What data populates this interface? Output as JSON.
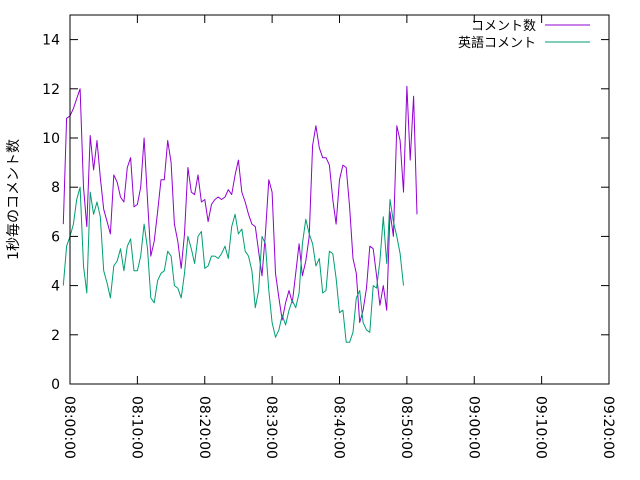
{
  "chart_data": {
    "type": "line",
    "title": "",
    "xlabel": "",
    "ylabel": "1秒毎のコメント数",
    "xlim": [
      "08:00:00",
      "09:20:00"
    ],
    "ylim": [
      0,
      15
    ],
    "x_ticks": [
      "08:00:00",
      "08:10:00",
      "08:20:00",
      "08:30:00",
      "08:40:00",
      "08:50:00",
      "09:00:00",
      "09:10:00",
      "09:20:00"
    ],
    "y_ticks": [
      0,
      2,
      4,
      6,
      8,
      10,
      12,
      14
    ],
    "grid": false,
    "legend_position": "top-right",
    "series": [
      {
        "name": "コメント数",
        "color": "#9400d3",
        "points": [
          [
            "07:59:00",
            6.5
          ],
          [
            "07:59:30",
            10.8
          ],
          [
            "08:00:00",
            10.9
          ],
          [
            "08:00:30",
            11.2
          ],
          [
            "08:01:00",
            11.6
          ],
          [
            "08:01:30",
            12.0
          ],
          [
            "08:02:00",
            8.0
          ],
          [
            "08:02:30",
            6.4
          ],
          [
            "08:03:00",
            10.1
          ],
          [
            "08:03:30",
            8.7
          ],
          [
            "08:04:00",
            9.9
          ],
          [
            "08:04:30",
            8.4
          ],
          [
            "08:05:00",
            7.1
          ],
          [
            "08:05:30",
            6.6
          ],
          [
            "08:06:00",
            6.1
          ],
          [
            "08:06:30",
            8.5
          ],
          [
            "08:07:00",
            8.2
          ],
          [
            "08:07:30",
            7.6
          ],
          [
            "08:08:00",
            7.4
          ],
          [
            "08:08:30",
            8.8
          ],
          [
            "08:09:00",
            9.2
          ],
          [
            "08:09:30",
            7.2
          ],
          [
            "08:10:00",
            7.3
          ],
          [
            "08:10:30",
            8.0
          ],
          [
            "08:11:00",
            10.0
          ],
          [
            "08:11:30",
            7.5
          ],
          [
            "08:12:00",
            5.2
          ],
          [
            "08:12:30",
            5.8
          ],
          [
            "08:13:00",
            7.0
          ],
          [
            "08:13:30",
            8.3
          ],
          [
            "08:14:00",
            8.3
          ],
          [
            "08:14:30",
            9.9
          ],
          [
            "08:15:00",
            9.0
          ],
          [
            "08:15:30",
            6.5
          ],
          [
            "08:16:00",
            5.8
          ],
          [
            "08:16:30",
            4.7
          ],
          [
            "08:17:00",
            6.1
          ],
          [
            "08:17:30",
            8.8
          ],
          [
            "08:18:00",
            7.8
          ],
          [
            "08:18:30",
            7.7
          ],
          [
            "08:19:00",
            8.5
          ],
          [
            "08:19:30",
            7.4
          ],
          [
            "08:20:00",
            7.5
          ],
          [
            "08:20:30",
            6.6
          ],
          [
            "08:21:00",
            7.3
          ],
          [
            "08:21:30",
            7.5
          ],
          [
            "08:22:00",
            7.6
          ],
          [
            "08:22:30",
            7.5
          ],
          [
            "08:23:00",
            7.6
          ],
          [
            "08:23:30",
            7.9
          ],
          [
            "08:24:00",
            7.7
          ],
          [
            "08:24:30",
            8.5
          ],
          [
            "08:25:00",
            9.1
          ],
          [
            "08:25:30",
            7.8
          ],
          [
            "08:26:00",
            7.4
          ],
          [
            "08:26:30",
            6.9
          ],
          [
            "08:27:00",
            6.5
          ],
          [
            "08:27:30",
            6.4
          ],
          [
            "08:28:00",
            5.4
          ],
          [
            "08:28:30",
            4.4
          ],
          [
            "08:29:00",
            6.1
          ],
          [
            "08:29:30",
            8.3
          ],
          [
            "08:30:00",
            7.8
          ],
          [
            "08:30:30",
            4.5
          ],
          [
            "08:31:00",
            3.5
          ],
          [
            "08:31:30",
            2.6
          ],
          [
            "08:32:00",
            3.3
          ],
          [
            "08:32:30",
            3.8
          ],
          [
            "08:33:00",
            3.3
          ],
          [
            "08:33:30",
            4.5
          ],
          [
            "08:34:00",
            5.7
          ],
          [
            "08:34:30",
            4.4
          ],
          [
            "08:35:00",
            5.0
          ],
          [
            "08:35:30",
            6.0
          ],
          [
            "08:36:00",
            9.7
          ],
          [
            "08:36:30",
            10.5
          ],
          [
            "08:37:00",
            9.6
          ],
          [
            "08:37:30",
            9.2
          ],
          [
            "08:38:00",
            9.2
          ],
          [
            "08:38:30",
            8.9
          ],
          [
            "08:39:00",
            7.5
          ],
          [
            "08:39:30",
            6.5
          ],
          [
            "08:40:00",
            8.3
          ],
          [
            "08:40:30",
            8.9
          ],
          [
            "08:41:00",
            8.8
          ],
          [
            "08:41:30",
            7.2
          ],
          [
            "08:42:00",
            5.1
          ],
          [
            "08:42:30",
            4.5
          ],
          [
            "08:43:00",
            2.5
          ],
          [
            "08:43:30",
            3.0
          ],
          [
            "08:44:00",
            3.9
          ],
          [
            "08:44:30",
            5.6
          ],
          [
            "08:45:00",
            5.5
          ],
          [
            "08:45:30",
            4.4
          ],
          [
            "08:46:00",
            3.2
          ],
          [
            "08:46:30",
            4.0
          ],
          [
            "08:47:00",
            3.0
          ],
          [
            "08:47:30",
            7.0
          ],
          [
            "08:48:00",
            6.0
          ],
          [
            "08:48:30",
            10.5
          ],
          [
            "08:49:00",
            9.9
          ],
          [
            "08:49:30",
            7.8
          ],
          [
            "08:50:00",
            12.1
          ],
          [
            "08:50:30",
            9.1
          ],
          [
            "08:51:00",
            11.7
          ],
          [
            "08:51:30",
            6.9
          ]
        ]
      },
      {
        "name": "英語コメント",
        "color": "#009e73",
        "points": [
          [
            "07:59:00",
            4.0
          ],
          [
            "07:59:30",
            5.6
          ],
          [
            "08:00:00",
            6.0
          ],
          [
            "08:00:30",
            6.5
          ],
          [
            "08:01:00",
            7.5
          ],
          [
            "08:01:30",
            8.0
          ],
          [
            "08:02:00",
            4.8
          ],
          [
            "08:02:30",
            3.7
          ],
          [
            "08:03:00",
            7.8
          ],
          [
            "08:03:30",
            6.9
          ],
          [
            "08:04:00",
            7.4
          ],
          [
            "08:04:30",
            6.8
          ],
          [
            "08:05:00",
            4.6
          ],
          [
            "08:05:30",
            4.1
          ],
          [
            "08:06:00",
            3.5
          ],
          [
            "08:06:30",
            4.8
          ],
          [
            "08:07:00",
            5.0
          ],
          [
            "08:07:30",
            5.5
          ],
          [
            "08:08:00",
            4.6
          ],
          [
            "08:08:30",
            5.6
          ],
          [
            "08:09:00",
            5.9
          ],
          [
            "08:09:30",
            4.6
          ],
          [
            "08:10:00",
            4.6
          ],
          [
            "08:10:30",
            5.2
          ],
          [
            "08:11:00",
            6.5
          ],
          [
            "08:11:30",
            5.5
          ],
          [
            "08:12:00",
            3.5
          ],
          [
            "08:12:30",
            3.3
          ],
          [
            "08:13:00",
            4.2
          ],
          [
            "08:13:30",
            4.5
          ],
          [
            "08:14:00",
            4.6
          ],
          [
            "08:14:30",
            5.4
          ],
          [
            "08:15:00",
            5.2
          ],
          [
            "08:15:30",
            4.0
          ],
          [
            "08:16:00",
            3.9
          ],
          [
            "08:16:30",
            3.5
          ],
          [
            "08:17:00",
            4.5
          ],
          [
            "08:17:30",
            6.0
          ],
          [
            "08:18:00",
            5.5
          ],
          [
            "08:18:30",
            4.9
          ],
          [
            "08:19:00",
            6.0
          ],
          [
            "08:19:30",
            6.2
          ],
          [
            "08:20:00",
            4.7
          ],
          [
            "08:20:30",
            4.8
          ],
          [
            "08:21:00",
            5.2
          ],
          [
            "08:21:30",
            5.2
          ],
          [
            "08:22:00",
            5.1
          ],
          [
            "08:22:30",
            5.3
          ],
          [
            "08:23:00",
            5.6
          ],
          [
            "08:23:30",
            5.1
          ],
          [
            "08:24:00",
            6.4
          ],
          [
            "08:24:30",
            6.9
          ],
          [
            "08:25:00",
            6.1
          ],
          [
            "08:25:30",
            6.3
          ],
          [
            "08:26:00",
            5.4
          ],
          [
            "08:26:30",
            5.2
          ],
          [
            "08:27:00",
            4.6
          ],
          [
            "08:27:30",
            3.1
          ],
          [
            "08:28:00",
            3.8
          ],
          [
            "08:28:30",
            6.0
          ],
          [
            "08:29:00",
            5.7
          ],
          [
            "08:29:30",
            3.8
          ],
          [
            "08:30:00",
            2.5
          ],
          [
            "08:30:30",
            1.9
          ],
          [
            "08:31:00",
            2.2
          ],
          [
            "08:31:30",
            2.8
          ],
          [
            "08:32:00",
            2.4
          ],
          [
            "08:32:30",
            3.0
          ],
          [
            "08:33:00",
            3.4
          ],
          [
            "08:33:30",
            3.1
          ],
          [
            "08:34:00",
            3.7
          ],
          [
            "08:34:30",
            5.7
          ],
          [
            "08:35:00",
            6.7
          ],
          [
            "08:35:30",
            6.1
          ],
          [
            "08:36:00",
            5.7
          ],
          [
            "08:36:30",
            4.8
          ],
          [
            "08:37:00",
            5.1
          ],
          [
            "08:37:30",
            3.7
          ],
          [
            "08:38:00",
            3.8
          ],
          [
            "08:38:30",
            5.4
          ],
          [
            "08:39:00",
            5.3
          ],
          [
            "08:39:30",
            4.3
          ],
          [
            "08:40:00",
            2.9
          ],
          [
            "08:40:30",
            3.0
          ],
          [
            "08:41:00",
            1.7
          ],
          [
            "08:41:30",
            1.7
          ],
          [
            "08:42:00",
            2.1
          ],
          [
            "08:42:30",
            3.5
          ],
          [
            "08:43:00",
            3.8
          ],
          [
            "08:43:30",
            2.5
          ],
          [
            "08:44:00",
            2.2
          ],
          [
            "08:44:30",
            2.1
          ],
          [
            "08:45:00",
            4.0
          ],
          [
            "08:45:30",
            3.9
          ],
          [
            "08:46:00",
            5.0
          ],
          [
            "08:46:30",
            6.8
          ],
          [
            "08:47:00",
            4.9
          ],
          [
            "08:47:30",
            7.5
          ],
          [
            "08:48:00",
            6.6
          ],
          [
            "08:48:30",
            6.0
          ],
          [
            "08:49:00",
            5.3
          ],
          [
            "08:49:30",
            4.0
          ]
        ]
      }
    ]
  }
}
